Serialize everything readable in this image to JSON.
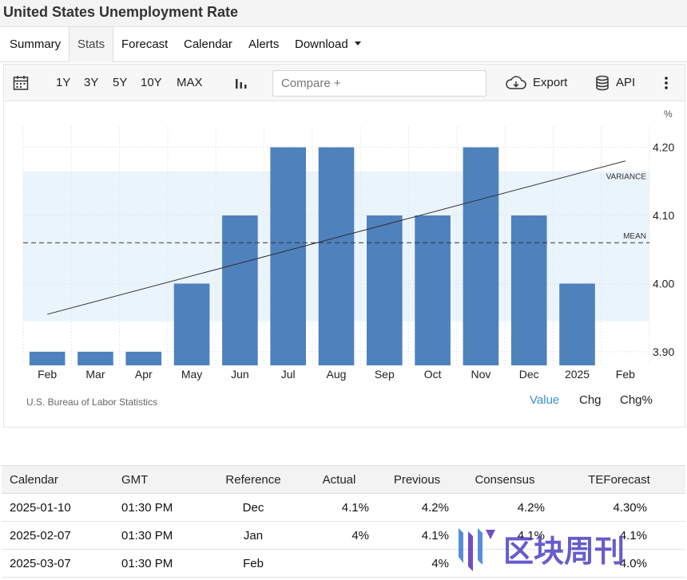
{
  "page": {
    "title": "United States Unemployment Rate"
  },
  "tabs": [
    {
      "label": "Summary"
    },
    {
      "label": "Stats"
    },
    {
      "label": "Forecast"
    },
    {
      "label": "Calendar"
    },
    {
      "label": "Alerts"
    },
    {
      "label": "Download"
    }
  ],
  "toolbar": {
    "calendar_icon": "calendar-icon",
    "ranges": [
      "1Y",
      "3Y",
      "5Y",
      "10Y",
      "MAX"
    ],
    "chart_type_icon": "bar-chart-icon",
    "compare_placeholder": "Compare +",
    "export_label": "Export",
    "export_icon": "cloud-download-icon",
    "api_label": "API",
    "api_icon": "database-icon",
    "more_icon": "more-vertical-icon"
  },
  "chart_data": {
    "type": "bar",
    "categories": [
      "Feb",
      "Mar",
      "Apr",
      "May",
      "Jun",
      "Jul",
      "Aug",
      "Sep",
      "Oct",
      "Nov",
      "Dec",
      "2025",
      "Feb"
    ],
    "values": [
      3.9,
      3.9,
      3.9,
      4.0,
      4.1,
      4.2,
      4.2,
      4.1,
      4.1,
      4.2,
      4.1,
      4.0,
      null
    ],
    "yticks": [
      "3.90",
      "4.00",
      "4.10",
      "4.20"
    ],
    "ylim": [
      3.88,
      4.23
    ],
    "yunit": "%",
    "mean": 4.06,
    "variance_band": [
      3.945,
      4.165
    ],
    "trend": [
      3.955,
      4.18
    ],
    "mean_label": "MEAN",
    "variance_label": "VARIANCE",
    "grid": true,
    "bar_color": "#4f81bd",
    "band_color": "#eaf4fc"
  },
  "source": "U.S. Bureau of Labor Statistics",
  "modes": [
    {
      "label": "Value",
      "active": true
    },
    {
      "label": "Chg",
      "active": false
    },
    {
      "label": "Chg%",
      "active": false
    }
  ],
  "accent_color": "#3b8fd9",
  "table": {
    "headers": [
      "Calendar",
      "GMT",
      "Reference",
      "Actual",
      "Previous",
      "Consensus",
      "TEForecast"
    ],
    "rows": [
      [
        "2025-01-10",
        "01:30 PM",
        "Dec",
        "4.1%",
        "4.2%",
        "4.2%",
        "4.30%"
      ],
      [
        "2025-02-07",
        "01:30 PM",
        "Jan",
        "4%",
        "4.1%",
        "4.1%",
        "4.1%"
      ],
      [
        "2025-03-07",
        "01:30 PM",
        "Feb",
        "",
        "4%",
        "",
        "4.0%"
      ]
    ]
  },
  "watermark": {
    "text": "区块周刊",
    "icon": "brand-logo-icon"
  }
}
